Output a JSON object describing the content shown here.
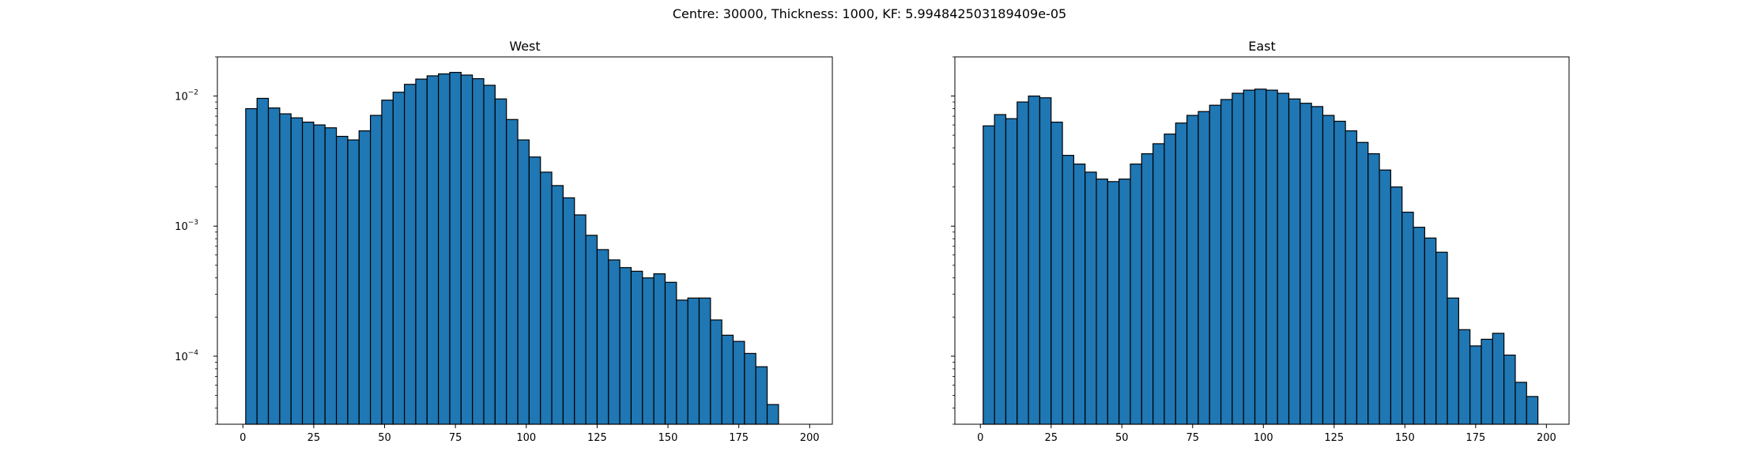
{
  "figure": {
    "suptitle": "Centre: 30000, Thickness: 1000, KF: 5.994842503189409e-05"
  },
  "chart_data": [
    {
      "type": "bar",
      "title": "West",
      "xlabel": "",
      "ylabel": "",
      "yscale": "log",
      "xlim": [
        -9,
        208
      ],
      "ylim": [
        3e-05,
        0.02
      ],
      "xticks": [
        0,
        25,
        50,
        75,
        100,
        125,
        150,
        175,
        200
      ],
      "yticks": [
        0.0001,
        0.001,
        0.01
      ],
      "ytick_labels": [
        [
          "10",
          "−4"
        ],
        [
          "10",
          "−3"
        ],
        [
          "10",
          "−2"
        ]
      ],
      "bar_color": "#1f77b4",
      "edge_color": "#000000",
      "grid": false,
      "bin_edges": [
        1,
        5,
        9,
        13,
        17,
        21,
        25,
        29,
        33,
        37,
        41,
        45,
        49,
        53,
        57,
        61,
        65,
        69,
        73,
        77,
        81,
        85,
        89,
        93,
        97,
        101,
        105,
        109,
        113,
        117,
        121,
        125,
        129,
        133,
        137,
        141,
        145,
        149,
        153,
        157,
        161,
        165,
        169,
        173,
        177,
        181,
        185,
        189,
        193,
        197
      ],
      "values": [
        0.008,
        0.0096,
        0.0081,
        0.0073,
        0.0068,
        0.0063,
        0.006,
        0.0057,
        0.0049,
        0.0046,
        0.0054,
        0.0071,
        0.0093,
        0.0107,
        0.0123,
        0.0135,
        0.0143,
        0.0148,
        0.0152,
        0.0145,
        0.0136,
        0.0121,
        0.0095,
        0.0066,
        0.0046,
        0.0034,
        0.0026,
        0.00205,
        0.00165,
        0.00122,
        0.00085,
        0.00066,
        0.00055,
        0.00048,
        0.00045,
        0.0004,
        0.00043,
        0.00037,
        0.00027,
        0.00028,
        0.00028,
        0.00019,
        0.000145,
        0.00013,
        0.000105,
        8.3e-05,
        4.25e-05,
        0,
        0
      ]
    },
    {
      "type": "bar",
      "title": "East",
      "xlabel": "",
      "ylabel": "",
      "yscale": "log",
      "xlim": [
        -9,
        208
      ],
      "ylim": [
        3e-05,
        0.02
      ],
      "xticks": [
        0,
        25,
        50,
        75,
        100,
        125,
        150,
        175,
        200
      ],
      "yticks": [
        0.0001,
        0.001,
        0.01
      ],
      "ytick_labels": [],
      "bar_color": "#1f77b4",
      "edge_color": "#000000",
      "grid": false,
      "bin_edges": [
        1,
        5,
        9,
        13,
        17,
        21,
        25,
        29,
        33,
        37,
        41,
        45,
        49,
        53,
        57,
        61,
        65,
        69,
        73,
        77,
        81,
        85,
        89,
        93,
        97,
        101,
        105,
        109,
        113,
        117,
        121,
        125,
        129,
        133,
        137,
        141,
        145,
        149,
        153,
        157,
        161,
        165,
        169,
        173,
        177,
        181,
        185,
        189,
        193,
        197
      ],
      "values": [
        0.0059,
        0.0072,
        0.0067,
        0.009,
        0.01,
        0.0097,
        0.0063,
        0.0035,
        0.003,
        0.0026,
        0.0023,
        0.0022,
        0.0023,
        0.003,
        0.0036,
        0.0043,
        0.0051,
        0.0062,
        0.0071,
        0.0076,
        0.0085,
        0.0094,
        0.0105,
        0.0111,
        0.0113,
        0.0111,
        0.0105,
        0.0095,
        0.0088,
        0.0083,
        0.0071,
        0.0064,
        0.0054,
        0.0044,
        0.0036,
        0.0027,
        0.002,
        0.00128,
        0.00098,
        0.00081,
        0.00063,
        0.00028,
        0.00016,
        0.00012,
        0.000135,
        0.00015,
        0.000102,
        6.3e-05,
        4.9e-05
      ]
    }
  ]
}
